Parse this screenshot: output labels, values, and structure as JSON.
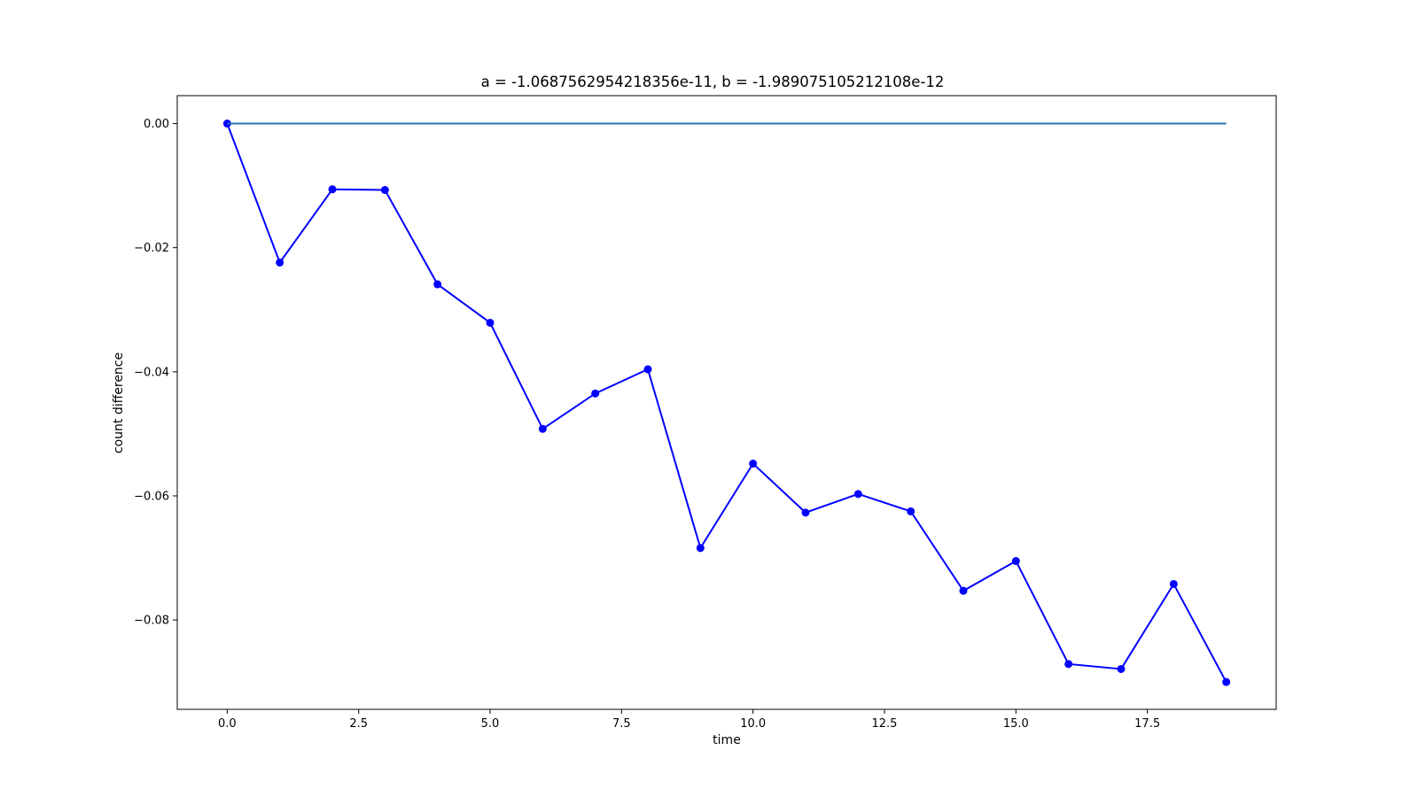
{
  "chart_data": {
    "type": "line",
    "title": "a = -1.0687562954218356e-11, b = -1.989075105212108e-12",
    "xlabel": "time",
    "ylabel": "count difference",
    "xlim": [
      -0.95,
      19.95
    ],
    "ylim": [
      -0.0944,
      0.0045
    ],
    "xticks": [
      0.0,
      2.5,
      5.0,
      7.5,
      10.0,
      12.5,
      15.0,
      17.5
    ],
    "xtick_labels": [
      "0.0",
      "2.5",
      "5.0",
      "7.5",
      "10.0",
      "12.5",
      "15.0",
      "17.5"
    ],
    "yticks": [
      0.0,
      -0.02,
      -0.04,
      -0.06,
      -0.08
    ],
    "ytick_labels": [
      "0.00",
      "−0.02",
      "−0.04",
      "−0.06",
      "−0.08"
    ],
    "grid": false,
    "legend": "none",
    "series": [
      {
        "x": [
          0,
          1,
          2,
          3,
          4,
          5,
          6,
          7,
          8,
          9,
          10,
          11,
          12,
          13,
          14,
          15,
          16,
          17,
          18,
          19
        ],
        "values": [
          0.0,
          -0.0224,
          -0.0106,
          -0.0107,
          -0.0259,
          -0.0321,
          -0.0492,
          -0.0435,
          -0.0396,
          -0.0684,
          -0.0548,
          -0.0627,
          -0.0597,
          -0.0625,
          -0.0753,
          -0.0705,
          -0.0871,
          -0.0879,
          -0.0742,
          -0.09
        ],
        "color": "#0000ff",
        "marker": "circle"
      },
      {
        "x": [
          0,
          19
        ],
        "values": [
          0.0,
          0.0
        ],
        "color": "#1f77b4",
        "marker": "none"
      }
    ]
  }
}
